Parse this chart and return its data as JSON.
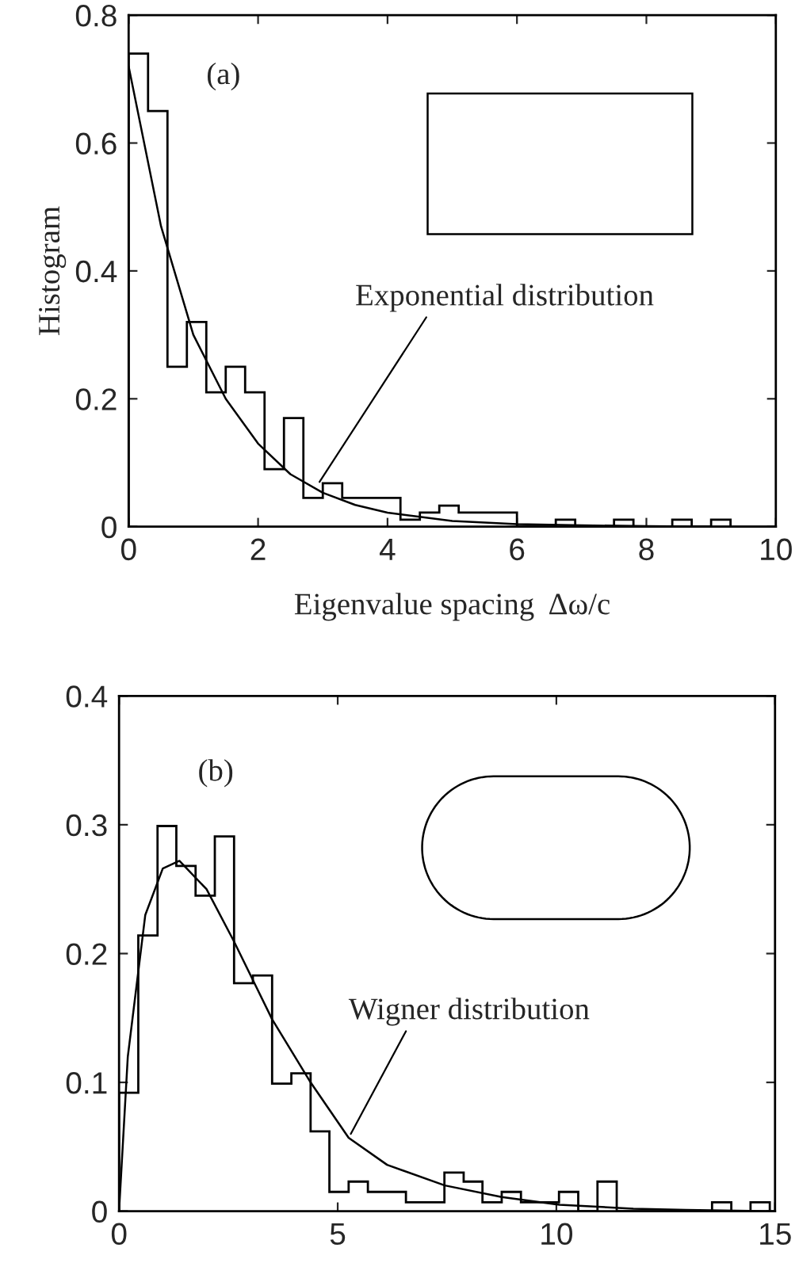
{
  "chart_data": [
    {
      "type": "histogram",
      "ylabel": "Histogram",
      "xlabel": "Eigenvalue spacing  Δω/c",
      "color": "#000000",
      "bins": [
        0,
        0.3,
        0.6,
        0.9,
        1.2,
        1.5,
        1.8,
        2.1,
        2.4,
        2.7,
        3.0,
        3.3,
        3.6,
        3.9,
        4.2,
        4.5,
        4.8,
        5.1,
        5.4,
        5.7,
        6.0,
        6.3,
        6.6,
        6.9,
        7.2,
        7.5,
        7.8,
        8.1,
        8.4,
        8.7,
        9.0,
        9.3
      ],
      "values": [
        0.74,
        0.65,
        0.25,
        0.32,
        0.21,
        0.25,
        0.21,
        0.09,
        0.17,
        0.045,
        0.068,
        0.045,
        0.045,
        0.045,
        0.011,
        0.022,
        0.033,
        0.022,
        0.022,
        0.022,
        0,
        0,
        0.011,
        0,
        0,
        0.011,
        0,
        0,
        0.011,
        0,
        0.011
      ],
      "series": [
        {
          "type": "line",
          "color": "#000000",
          "x": [
            0,
            0.5,
            1,
            1.5,
            2,
            2.5,
            3,
            3.5,
            4,
            5,
            6,
            7,
            8,
            9,
            10
          ],
          "values": [
            0.72,
            0.47,
            0.3,
            0.2,
            0.13,
            0.082,
            0.053,
            0.034,
            0.022,
            0.009,
            0.004,
            0.002,
            0.001,
            0,
            0
          ]
        }
      ],
      "annotations": [
        "(a)",
        {
          "text": "Exponential distribution",
          "x": 2.95,
          "y": 0.07
        }
      ],
      "xlim": [
        0,
        10
      ],
      "ylim": [
        0,
        0.8
      ],
      "xticks": [
        0,
        2,
        4,
        6,
        8,
        10
      ],
      "yticks": [
        0,
        0.2,
        0.4,
        0.6,
        0.8
      ]
    },
    {
      "type": "histogram",
      "color": "#000000",
      "bins": [
        0,
        0.44,
        0.88,
        1.31,
        1.75,
        2.19,
        2.63,
        3.06,
        3.5,
        3.94,
        4.38,
        4.81,
        5.25,
        5.69,
        6.13,
        6.56,
        7,
        7.44,
        7.88,
        8.31,
        8.75,
        9.19,
        9.63,
        10.06,
        10.5,
        10.94,
        11.38,
        11.81,
        12.25,
        12.69,
        13.13,
        13.56,
        14,
        14.44,
        14.88
      ],
      "values": [
        0.092,
        0.214,
        0.299,
        0.268,
        0.245,
        0.291,
        0.177,
        0.183,
        0.099,
        0.107,
        0.062,
        0.015,
        0.023,
        0.015,
        0.015,
        0.007,
        0.007,
        0.03,
        0.023,
        0.007,
        0.015,
        0.007,
        0.007,
        0.015,
        0,
        0.023,
        0,
        0,
        0,
        0,
        0,
        0.007,
        0,
        0.007
      ],
      "series": [
        {
          "type": "line",
          "color": "#000000",
          "x": [
            0,
            0.2,
            0.6,
            1.0,
            1.38,
            2,
            2.62,
            3.5,
            4.38,
            5.25,
            6.13,
            7.45,
            8.75,
            10.07,
            11.76,
            12.97,
            15
          ],
          "values": [
            0,
            0.12,
            0.23,
            0.266,
            0.272,
            0.25,
            0.21,
            0.149,
            0.1,
            0.057,
            0.036,
            0.02,
            0.011,
            0.005,
            0.002,
            0.001,
            0
          ]
        }
      ],
      "annotations": [
        "(b)",
        {
          "text": "Wigner distribution",
          "x": 5.3,
          "y": 0.06
        }
      ],
      "xlim": [
        0,
        15
      ],
      "ylim": [
        0,
        0.4
      ],
      "xticks": [
        0,
        5,
        10,
        15
      ],
      "yticks": [
        0,
        0.1,
        0.2,
        0.3,
        0.4
      ]
    }
  ]
}
